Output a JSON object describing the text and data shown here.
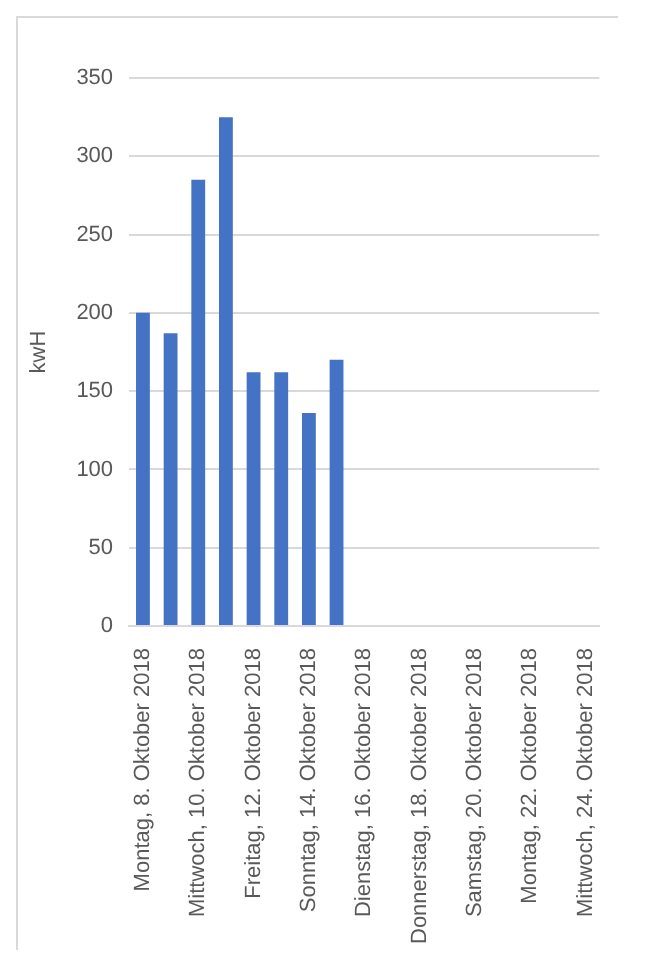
{
  "chart_data": {
    "type": "bar",
    "ylabel": "kwH",
    "categories": [
      "Montag, 8. Oktober 2018",
      null,
      "Mittwoch, 10. Oktober 2018",
      null,
      "Freitag, 12. Oktober 2018",
      null,
      "Sonntag, 14. Oktober 2018",
      null,
      "Dienstag, 16. Oktober 2018",
      null,
      "Donnerstag, 18. Oktober 2018",
      null,
      "Samstag, 20. Oktober 2018",
      null,
      "Montag, 22. Oktober 2018",
      null,
      "Mittwoch, 24. Oktober 2018"
    ],
    "values": [
      200,
      187,
      285,
      325,
      162,
      162,
      136,
      170,
      null,
      null,
      null,
      null,
      null,
      null,
      null,
      null,
      null
    ],
    "color": "#4472c4",
    "ylim": [
      0,
      350
    ],
    "yticks": [
      0,
      50,
      100,
      150,
      200,
      250,
      300,
      350
    ],
    "grid": "y"
  }
}
